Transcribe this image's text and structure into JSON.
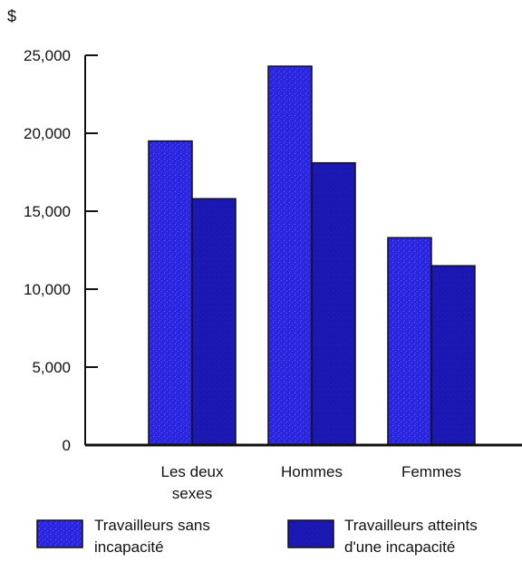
{
  "chart_data": {
    "type": "bar",
    "unit_label": "$",
    "categories": [
      [
        "Les deux",
        "sexes"
      ],
      [
        "Hommes"
      ],
      [
        "Femmes"
      ]
    ],
    "series": [
      {
        "name_lines": [
          "Travailleurs sans",
          "incapacité"
        ],
        "values": [
          19500,
          24300,
          13300
        ],
        "color": "#2a25e0"
      },
      {
        "name_lines": [
          "Travailleurs atteints",
          "d'une incapacité"
        ],
        "values": [
          15800,
          18100,
          11500
        ],
        "color": "#1a18b0"
      }
    ],
    "yticks": [
      "0",
      "5,000",
      "10,000",
      "15,000",
      "20,000",
      "25,000"
    ],
    "ylim": [
      0,
      25000
    ],
    "grid": false,
    "legend_position": "bottom"
  }
}
